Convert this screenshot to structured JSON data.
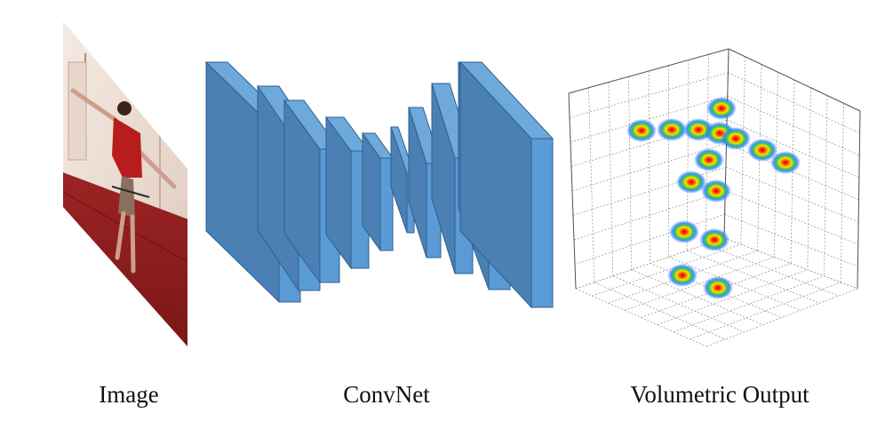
{
  "captions": {
    "image": "Image",
    "convnet": "ConvNet",
    "volumetric": "Volumetric Output"
  },
  "colors": {
    "layer_front": "#5b9bd5",
    "layer_side": "#4a80b4",
    "layer_top": "#6ea9dc",
    "layer_edge": "#2f5f8f",
    "grid": "#9a9a9a",
    "floor_red": "#8e1c1c",
    "wall": "#f1e4da"
  },
  "icons": [
    "person-photo",
    "convnet-layer-stack",
    "3d-heatmap-cube"
  ],
  "convnet": {
    "layer_count": 9
  },
  "volumetric": {
    "joint_count": 16
  }
}
